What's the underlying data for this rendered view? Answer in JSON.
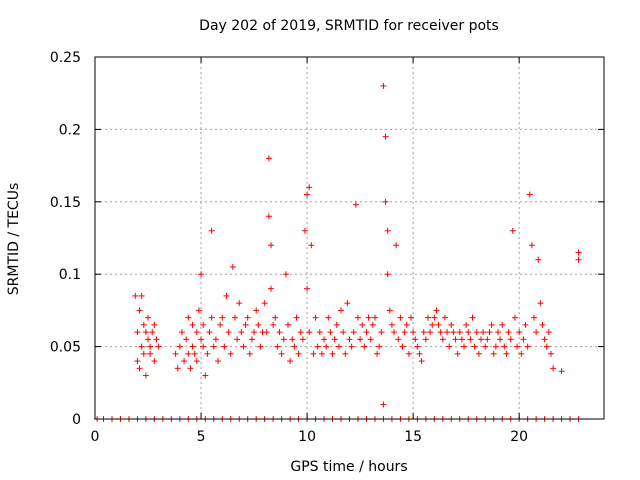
{
  "chart_data": {
    "type": "scatter",
    "title": "Day 202 of 2019, SRMTID for receiver pots",
    "xlabel": "GPS time / hours",
    "ylabel": "SRMTID / TECUs",
    "xlim": [
      0,
      24
    ],
    "ylim": [
      0,
      0.25
    ],
    "x_ticks": [
      0,
      5,
      10,
      15,
      20
    ],
    "y_ticks": [
      0,
      0.05,
      0.1,
      0.15,
      0.2,
      0.25
    ],
    "x_tick_labels": [
      "0",
      "5",
      "10",
      "15",
      "20"
    ],
    "y_tick_labels": [
      "0",
      "0.05",
      "0.1",
      "0.15",
      "0.2",
      "0.25"
    ],
    "grid": true,
    "marker": "+",
    "color": "#ff0000",
    "series": [
      {
        "x": [
          1.9,
          2.0,
          2.0,
          2.1,
          2.1,
          2.2,
          2.2,
          2.3,
          2.3,
          2.4,
          2.4,
          2.5,
          2.5,
          2.6,
          2.6,
          2.7,
          2.8,
          2.8,
          2.9,
          3.0,
          3.8,
          3.9,
          4.0,
          4.1,
          4.2,
          4.3,
          4.4,
          4.4,
          4.5,
          4.6,
          4.6,
          4.7,
          4.8,
          4.8,
          4.9,
          5.0,
          5.0,
          5.1,
          5.1,
          5.2,
          5.3,
          5.4,
          5.5,
          5.5,
          5.6,
          5.7,
          5.8,
          5.9,
          6.0,
          6.1,
          6.2,
          6.3,
          6.4,
          6.5,
          6.6,
          6.7,
          6.8,
          6.9,
          7.0,
          7.1,
          7.2,
          7.3,
          7.4,
          7.5,
          7.6,
          7.7,
          7.8,
          7.9,
          8.0,
          8.1,
          8.2,
          8.2,
          8.3,
          8.3,
          8.4,
          8.5,
          8.6,
          8.7,
          8.8,
          8.9,
          9.0,
          9.1,
          9.2,
          9.3,
          9.4,
          9.5,
          9.6,
          9.7,
          9.8,
          9.9,
          10.0,
          10.0,
          10.1,
          10.1,
          10.2,
          10.3,
          10.4,
          10.5,
          10.6,
          10.7,
          10.8,
          10.9,
          11.0,
          11.1,
          11.2,
          11.3,
          11.4,
          11.5,
          11.6,
          11.7,
          11.8,
          11.9,
          12.0,
          12.1,
          12.2,
          12.3,
          12.4,
          12.5,
          12.6,
          12.7,
          12.8,
          12.9,
          13.0,
          13.1,
          13.2,
          13.3,
          13.4,
          13.5,
          13.6,
          13.6,
          13.7,
          13.7,
          13.8,
          13.8,
          13.9,
          14.0,
          14.1,
          14.2,
          14.3,
          14.4,
          14.5,
          14.6,
          14.7,
          14.8,
          14.9,
          15.0,
          15.1,
          15.2,
          15.3,
          15.4,
          15.5,
          15.6,
          15.7,
          15.8,
          15.9,
          16.0,
          16.1,
          16.2,
          16.3,
          16.4,
          16.5,
          16.6,
          16.7,
          16.8,
          16.9,
          17.0,
          17.1,
          17.2,
          17.3,
          17.4,
          17.5,
          17.6,
          17.7,
          17.8,
          17.9,
          18.0,
          18.1,
          18.2,
          18.3,
          18.4,
          18.5,
          18.6,
          18.7,
          18.8,
          18.9,
          19.0,
          19.1,
          19.2,
          19.3,
          19.4,
          19.5,
          19.6,
          19.7,
          19.8,
          19.9,
          20.0,
          20.1,
          20.2,
          20.3,
          20.4,
          20.5,
          20.6,
          20.7,
          20.8,
          20.9,
          21.0,
          21.1,
          21.2,
          21.3,
          21.4,
          21.5,
          21.6,
          22.0,
          22.8,
          22.8
        ],
        "y": [
          0.085,
          0.04,
          0.06,
          0.035,
          0.075,
          0.05,
          0.085,
          0.045,
          0.065,
          0.06,
          0.03,
          0.055,
          0.07,
          0.045,
          0.05,
          0.06,
          0.04,
          0.065,
          0.055,
          0.05,
          0.045,
          0.035,
          0.05,
          0.06,
          0.04,
          0.055,
          0.045,
          0.07,
          0.035,
          0.05,
          0.065,
          0.045,
          0.06,
          0.04,
          0.075,
          0.055,
          0.1,
          0.05,
          0.065,
          0.03,
          0.045,
          0.06,
          0.13,
          0.07,
          0.05,
          0.055,
          0.04,
          0.065,
          0.07,
          0.05,
          0.085,
          0.06,
          0.045,
          0.105,
          0.07,
          0.055,
          0.08,
          0.06,
          0.05,
          0.065,
          0.07,
          0.045,
          0.055,
          0.06,
          0.075,
          0.065,
          0.05,
          0.06,
          0.08,
          0.06,
          0.18,
          0.14,
          0.12,
          0.09,
          0.065,
          0.07,
          0.05,
          0.06,
          0.045,
          0.055,
          0.1,
          0.065,
          0.04,
          0.055,
          0.05,
          0.07,
          0.045,
          0.06,
          0.055,
          0.13,
          0.155,
          0.09,
          0.06,
          0.16,
          0.12,
          0.045,
          0.07,
          0.05,
          0.06,
          0.045,
          0.055,
          0.05,
          0.07,
          0.06,
          0.045,
          0.055,
          0.065,
          0.05,
          0.075,
          0.06,
          0.045,
          0.08,
          0.055,
          0.05,
          0.06,
          0.148,
          0.07,
          0.055,
          0.065,
          0.05,
          0.06,
          0.07,
          0.055,
          0.065,
          0.07,
          0.045,
          0.05,
          0.06,
          0.01,
          0.23,
          0.195,
          0.15,
          0.13,
          0.1,
          0.075,
          0.065,
          0.06,
          0.12,
          0.055,
          0.07,
          0.05,
          0.06,
          0.065,
          0.045,
          0.07,
          0.06,
          0.055,
          0.05,
          0.045,
          0.04,
          0.06,
          0.055,
          0.07,
          0.06,
          0.065,
          0.07,
          0.075,
          0.065,
          0.06,
          0.055,
          0.07,
          0.06,
          0.05,
          0.065,
          0.06,
          0.055,
          0.045,
          0.06,
          0.055,
          0.05,
          0.065,
          0.06,
          0.055,
          0.07,
          0.05,
          0.06,
          0.045,
          0.055,
          0.06,
          0.05,
          0.055,
          0.06,
          0.065,
          0.045,
          0.05,
          0.06,
          0.055,
          0.065,
          0.05,
          0.045,
          0.06,
          0.055,
          0.13,
          0.07,
          0.05,
          0.06,
          0.045,
          0.055,
          0.065,
          0.05,
          0.155,
          0.12,
          0.07,
          0.06,
          0.11,
          0.08,
          0.065,
          0.055,
          0.05,
          0.06,
          0.045,
          0.035,
          0.033,
          0.11,
          0.115
        ]
      },
      {
        "name": "zero-line",
        "x": [
          0.1,
          0.4,
          0.8,
          1.2,
          1.6,
          2.0,
          2.4,
          2.8,
          3.2,
          3.6,
          4.0,
          4.4,
          4.8,
          5.2,
          5.6,
          6.0,
          6.4,
          6.8,
          7.2,
          7.6,
          8.0,
          8.4,
          8.8,
          9.2,
          9.6,
          10.0,
          10.4,
          10.8,
          11.2,
          11.6,
          12.0,
          12.4,
          12.8,
          13.2,
          13.6,
          14.0,
          14.4,
          14.8,
          15.2,
          15.6,
          16.0,
          16.4,
          16.8,
          17.2,
          17.6,
          18.0,
          18.4,
          18.8,
          19.2,
          19.6,
          20.0,
          20.4,
          20.8,
          21.2,
          21.6,
          22.0,
          22.4,
          22.8
        ],
        "y": [
          0,
          0,
          0,
          0,
          0,
          0,
          0,
          0,
          0,
          0,
          0,
          0,
          0,
          0,
          0,
          0,
          0,
          0,
          0,
          0,
          0,
          0,
          0,
          0,
          0,
          0,
          0,
          0,
          0,
          0,
          0,
          0,
          0,
          0,
          0,
          0,
          0,
          0,
          0,
          0,
          0,
          0,
          0,
          0,
          0,
          0,
          0,
          0,
          0,
          0,
          0,
          0,
          0,
          0,
          0,
          0,
          0,
          0
        ]
      }
    ]
  }
}
